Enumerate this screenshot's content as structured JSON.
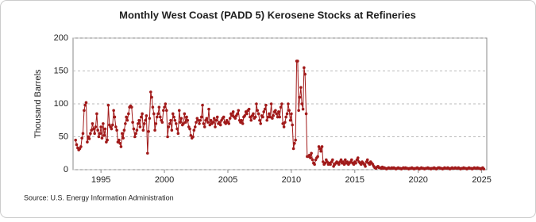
{
  "chart_data": {
    "type": "line",
    "title": "Monthly West Coast (PADD 5) Kerosene Stocks at Refineries",
    "y_label": "Thousand Barrels",
    "source": "Source: U.S. Energy Information Administration",
    "xlim": [
      1992.8,
      2025.4
    ],
    "xticks": [
      1995,
      2000,
      2005,
      2010,
      2015,
      2020,
      2025
    ],
    "ylim": [
      0,
      200
    ],
    "yticks": [
      0,
      50,
      100,
      150,
      200
    ],
    "grid": true,
    "series": [
      {
        "name": "West Coast (PADD 5) Kerosene Stocks at Refineries",
        "color": "#a11a1a",
        "x": [
          1993,
          1993.08,
          1993.17,
          1993.25,
          1993.33,
          1993.42,
          1993.5,
          1993.58,
          1993.67,
          1993.75,
          1993.83,
          1993.92,
          1994,
          1994.08,
          1994.17,
          1994.25,
          1994.33,
          1994.42,
          1994.5,
          1994.58,
          1994.67,
          1994.75,
          1994.83,
          1994.92,
          1995,
          1995.08,
          1995.17,
          1995.25,
          1995.33,
          1995.42,
          1995.5,
          1995.58,
          1995.67,
          1995.75,
          1995.83,
          1995.92,
          1996,
          1996.08,
          1996.17,
          1996.25,
          1996.33,
          1996.42,
          1996.5,
          1996.58,
          1996.67,
          1996.75,
          1996.83,
          1996.92,
          1997,
          1997.08,
          1997.17,
          1997.25,
          1997.33,
          1997.42,
          1997.5,
          1997.58,
          1997.67,
          1997.75,
          1997.83,
          1997.92,
          1998,
          1998.08,
          1998.17,
          1998.25,
          1998.33,
          1998.42,
          1998.5,
          1998.58,
          1998.67,
          1998.75,
          1998.83,
          1998.92,
          1999,
          1999.08,
          1999.17,
          1999.25,
          1999.33,
          1999.42,
          1999.5,
          1999.58,
          1999.67,
          1999.75,
          1999.83,
          1999.92,
          2000,
          2000.08,
          2000.17,
          2000.25,
          2000.33,
          2000.42,
          2000.5,
          2000.58,
          2000.67,
          2000.75,
          2000.83,
          2000.92,
          2001,
          2001.08,
          2001.17,
          2001.25,
          2001.33,
          2001.42,
          2001.5,
          2001.58,
          2001.67,
          2001.75,
          2001.83,
          2001.92,
          2002,
          2002.08,
          2002.17,
          2002.25,
          2002.33,
          2002.42,
          2002.5,
          2002.58,
          2002.67,
          2002.75,
          2002.83,
          2002.92,
          2003,
          2003.08,
          2003.17,
          2003.25,
          2003.33,
          2003.42,
          2003.5,
          2003.58,
          2003.67,
          2003.75,
          2003.83,
          2003.92,
          2004,
          2004.08,
          2004.17,
          2004.25,
          2004.33,
          2004.42,
          2004.5,
          2004.58,
          2004.67,
          2004.75,
          2004.83,
          2004.92,
          2005,
          2005.08,
          2005.17,
          2005.25,
          2005.33,
          2005.42,
          2005.5,
          2005.58,
          2005.67,
          2005.75,
          2005.83,
          2005.92,
          2006,
          2006.08,
          2006.17,
          2006.25,
          2006.33,
          2006.42,
          2006.5,
          2006.58,
          2006.67,
          2006.75,
          2006.83,
          2006.92,
          2007,
          2007.08,
          2007.17,
          2007.25,
          2007.33,
          2007.42,
          2007.5,
          2007.58,
          2007.67,
          2007.75,
          2007.83,
          2007.92,
          2008,
          2008.08,
          2008.17,
          2008.25,
          2008.33,
          2008.42,
          2008.5,
          2008.58,
          2008.67,
          2008.75,
          2008.83,
          2008.92,
          2009,
          2009.08,
          2009.17,
          2009.25,
          2009.33,
          2009.42,
          2009.5,
          2009.58,
          2009.67,
          2009.75,
          2009.83,
          2009.92,
          2010,
          2010.08,
          2010.17,
          2010.25,
          2010.33,
          2010.42,
          2010.5,
          2010.58,
          2010.67,
          2010.75,
          2010.83,
          2010.92,
          2011,
          2011.08,
          2011.17,
          2011.25,
          2011.33,
          2011.42,
          2011.5,
          2011.58,
          2011.67,
          2011.75,
          2011.83,
          2011.92,
          2012,
          2012.08,
          2012.17,
          2012.25,
          2012.33,
          2012.42,
          2012.5,
          2012.58,
          2012.67,
          2012.75,
          2012.83,
          2012.92,
          2013,
          2013.08,
          2013.17,
          2013.25,
          2013.33,
          2013.42,
          2013.5,
          2013.58,
          2013.67,
          2013.75,
          2013.83,
          2013.92,
          2014,
          2014.08,
          2014.17,
          2014.25,
          2014.33,
          2014.42,
          2014.5,
          2014.58,
          2014.67,
          2014.75,
          2014.83,
          2014.92,
          2015,
          2015.08,
          2015.17,
          2015.25,
          2015.33,
          2015.42,
          2015.5,
          2015.58,
          2015.67,
          2015.75,
          2015.83,
          2015.92,
          2016,
          2016.08,
          2016.17,
          2016.25,
          2016.33,
          2016.42,
          2016.5,
          2016.58,
          2016.67,
          2016.75,
          2016.83,
          2016.92,
          2017,
          2017.08,
          2017.17,
          2017.25,
          2017.33,
          2017.42,
          2017.5,
          2017.58,
          2017.67,
          2017.75,
          2017.83,
          2017.92,
          2018,
          2018.08,
          2018.17,
          2018.25,
          2018.33,
          2018.42,
          2018.5,
          2018.58,
          2018.67,
          2018.75,
          2018.83,
          2018.92,
          2019,
          2019.08,
          2019.17,
          2019.25,
          2019.33,
          2019.42,
          2019.5,
          2019.58,
          2019.67,
          2019.75,
          2019.83,
          2019.92,
          2020,
          2020.08,
          2020.17,
          2020.25,
          2020.33,
          2020.42,
          2020.5,
          2020.58,
          2020.67,
          2020.75,
          2020.83,
          2020.92,
          2021,
          2021.08,
          2021.17,
          2021.25,
          2021.33,
          2021.42,
          2021.5,
          2021.58,
          2021.67,
          2021.75,
          2021.83,
          2021.92,
          2022,
          2022.08,
          2022.17,
          2022.25,
          2022.33,
          2022.42,
          2022.5,
          2022.58,
          2022.67,
          2022.75,
          2022.83,
          2022.92,
          2023,
          2023.08,
          2023.17,
          2023.25,
          2023.33,
          2023.42,
          2023.5,
          2023.58,
          2023.67,
          2023.75,
          2023.83,
          2023.92,
          2024,
          2024.08,
          2024.17,
          2024.25,
          2024.33,
          2024.42,
          2024.5,
          2024.58,
          2024.67,
          2024.75,
          2024.83,
          2024.92,
          2025,
          2025.08,
          2025.17
        ],
        "values": [
          45,
          38,
          33,
          30,
          32,
          35,
          48,
          55,
          90,
          98,
          102,
          42,
          50,
          47,
          55,
          60,
          70,
          62,
          55,
          65,
          85,
          60,
          50,
          55,
          65,
          48,
          70,
          52,
          62,
          42,
          45,
          98,
          68,
          65,
          62,
          68,
          90,
          80,
          65,
          60,
          42,
          45,
          40,
          35,
          55,
          48,
          60,
          70,
          80,
          75,
          85,
          95,
          97,
          95,
          72,
          62,
          50,
          55,
          60,
          70,
          75,
          65,
          80,
          85,
          60,
          70,
          75,
          82,
          25,
          58,
          78,
          118,
          110,
          95,
          85,
          60,
          70,
          80,
          85,
          95,
          80,
          75,
          72,
          90,
          95,
          100,
          90,
          50,
          65,
          70,
          75,
          60,
          85,
          80,
          75,
          70,
          62,
          55,
          90,
          72,
          78,
          68,
          70,
          85,
          72,
          80,
          75,
          65,
          62,
          52,
          48,
          50,
          60,
          65,
          72,
          78,
          75,
          70,
          75,
          80,
          98,
          70,
          65,
          75,
          78,
          72,
          92,
          68,
          75,
          70,
          72,
          78,
          65,
          75,
          80,
          70,
          72,
          68,
          75,
          78,
          80,
          72,
          70,
          75,
          72,
          70,
          78,
          85,
          82,
          88,
          80,
          78,
          82,
          85,
          90,
          75,
          72,
          75,
          70,
          80,
          82,
          88,
          85,
          90,
          92,
          80,
          75,
          82,
          85,
          78,
          80,
          100,
          90,
          85,
          75,
          70,
          82,
          80,
          88,
          92,
          98,
          75,
          80,
          85,
          80,
          100,
          78,
          82,
          88,
          90,
          85,
          80,
          88,
          80,
          95,
          100,
          70,
          65,
          72,
          80,
          85,
          100,
          90,
          75,
          85,
          68,
          32,
          40,
          45,
          165,
          165,
          90,
          110,
          125,
          100,
          92,
          155,
          145,
          85,
          20,
          20,
          22,
          18,
          25,
          15,
          10,
          8,
          15,
          18,
          20,
          35,
          32,
          28,
          35,
          12,
          8,
          10,
          15,
          12,
          8,
          10,
          8,
          12,
          15,
          5,
          8,
          10,
          12,
          10,
          8,
          12,
          15,
          10,
          12,
          8,
          15,
          10,
          12,
          8,
          10,
          12,
          15,
          10,
          8,
          12,
          10,
          15,
          18,
          12,
          10,
          8,
          12,
          10,
          8,
          5,
          12,
          15,
          10,
          8,
          12,
          10,
          8,
          5,
          3,
          2,
          4,
          5,
          3,
          3,
          2,
          4,
          2,
          3,
          2,
          1,
          2,
          3,
          2,
          2,
          3,
          2,
          3,
          2,
          1,
          2,
          3,
          2,
          2,
          1,
          2,
          3,
          2,
          3,
          2,
          2,
          1,
          2,
          2,
          3,
          2,
          1,
          2,
          2,
          3,
          2,
          1,
          2,
          3,
          2,
          2,
          1,
          2,
          2,
          3,
          2,
          2,
          1,
          2,
          2,
          3,
          2,
          1,
          2,
          3,
          3,
          2,
          2,
          1,
          2,
          3,
          2,
          2,
          3,
          2,
          1,
          2,
          3,
          2,
          2,
          3,
          2,
          2,
          3,
          2,
          1,
          2,
          2,
          3,
          2,
          2,
          1,
          2,
          3,
          2,
          2,
          1,
          2,
          3,
          2,
          2,
          3,
          2,
          2,
          1,
          2,
          3,
          1
        ]
      }
    ]
  }
}
